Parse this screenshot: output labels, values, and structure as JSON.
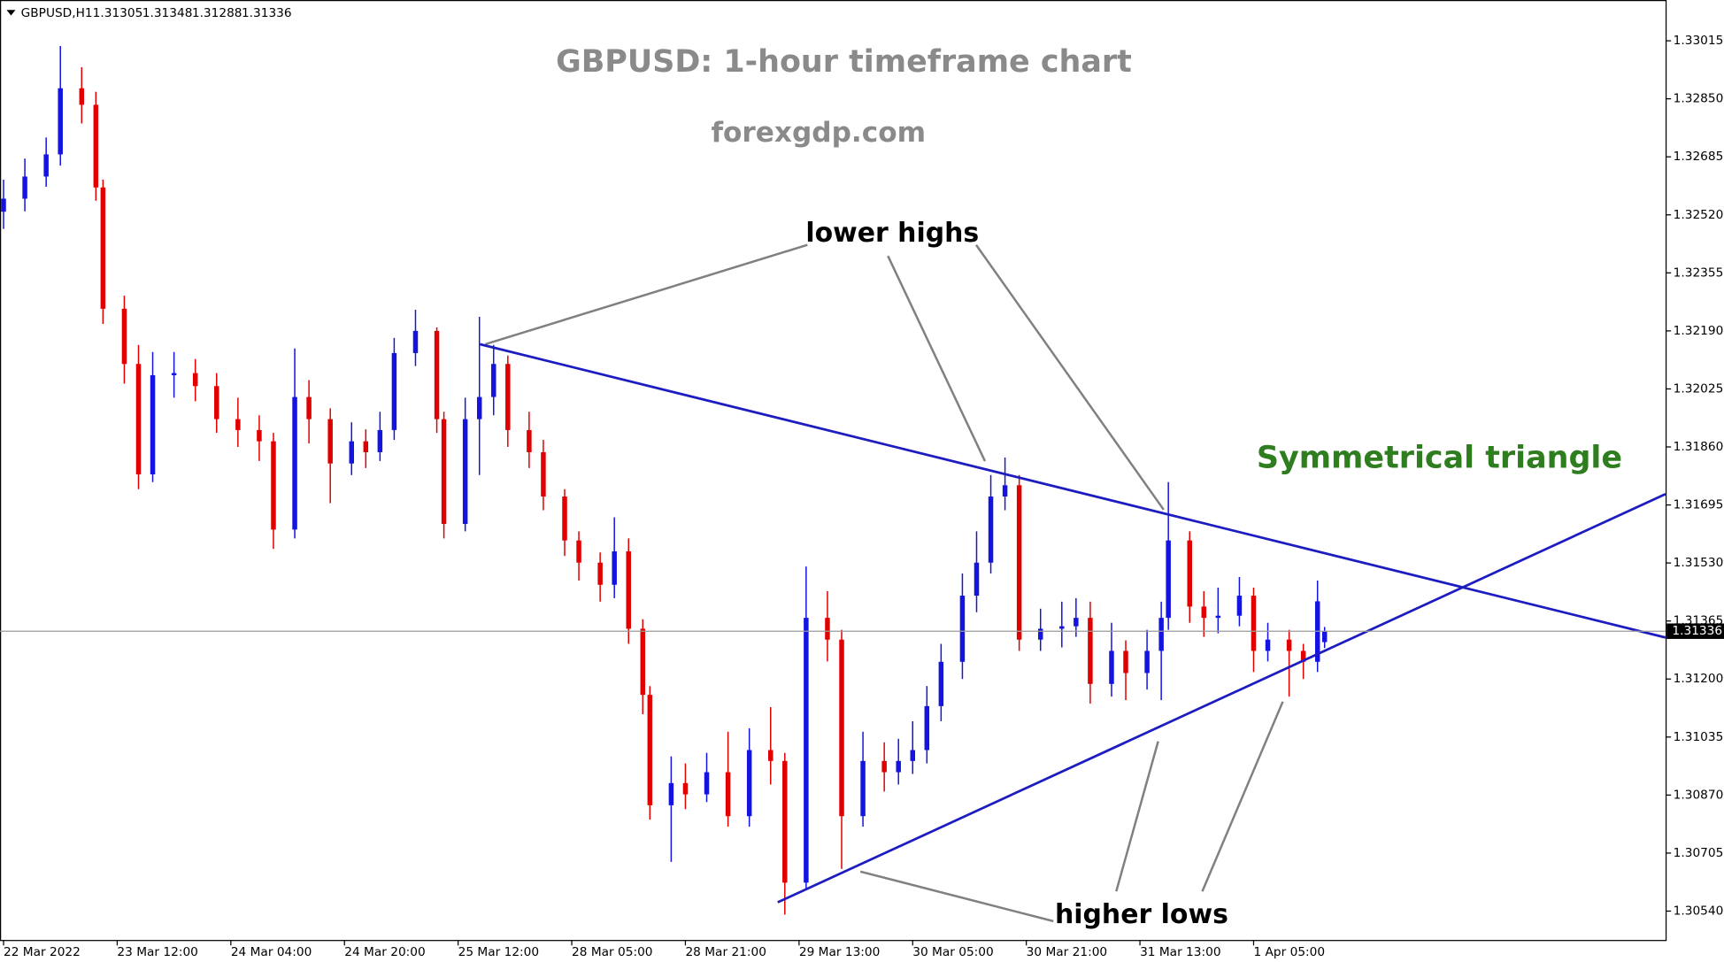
{
  "chart_data": {
    "type": "candlestick",
    "symbol": "GBPUSD,H1",
    "title": "GBPUSD: 1-hour timeframe chart",
    "subtitle": "forexgdp.com",
    "annotations": {
      "lower_highs": "lower highs",
      "higher_lows": "higher lows",
      "pattern": "Symmetrical triangle"
    },
    "x": [
      0,
      3,
      6,
      8,
      11,
      13,
      14,
      17,
      19,
      21,
      24,
      27,
      30,
      33,
      36,
      38,
      41,
      43,
      46,
      49,
      51,
      53,
      55,
      58,
      61,
      62,
      65,
      67,
      69,
      71,
      74,
      76,
      79,
      81,
      84,
      86,
      88,
      90,
      91,
      94,
      96,
      99,
      102,
      105,
      108,
      110,
      113,
      116,
      118,
      121,
      124,
      126,
      128,
      130,
      132,
      135,
      137,
      139,
      141,
      143,
      146,
      149,
      151,
      153,
      156,
      158,
      161,
      163,
      164,
      167,
      169,
      171,
      174,
      176,
      178,
      181,
      183,
      185,
      186
    ],
    "open": [
      1.32529,
      1.32566,
      1.32629,
      1.32692,
      1.3288,
      1.32833,
      1.32598,
      1.32253,
      1.32096,
      1.31782,
      1.32064,
      1.3207,
      1.32033,
      1.31939,
      1.31908,
      1.31876,
      1.31625,
      1.32002,
      1.31939,
      1.31813,
      1.31876,
      1.31845,
      1.31908,
      1.32127,
      1.3219,
      1.31939,
      1.31641,
      1.31939,
      1.32002,
      1.32096,
      1.31908,
      1.31845,
      1.31719,
      1.31594,
      1.31531,
      1.31468,
      1.31563,
      1.31343,
      1.31155,
      1.30841,
      1.30904,
      1.30872,
      1.30935,
      1.3081,
      1.30998,
      1.30967,
      1.30621,
      1.31374,
      1.31312,
      1.3081,
      1.30967,
      1.30935,
      1.30967,
      1.30998,
      1.31123,
      1.31249,
      1.31437,
      1.31531,
      1.31719,
      1.31751,
      1.31312,
      1.31343,
      1.3135,
      1.31374,
      1.31186,
      1.3128,
      1.31217,
      1.3128,
      1.31374,
      1.31594,
      1.31406,
      1.31374,
      1.3138,
      1.31437,
      1.3128,
      1.31312,
      1.3128,
      1.31249,
      1.31305
    ],
    "high": [
      1.3262,
      1.3268,
      1.3274,
      1.33,
      1.3294,
      1.3287,
      1.3262,
      1.3229,
      1.3215,
      1.3213,
      1.3213,
      1.3211,
      1.3207,
      1.32,
      1.3195,
      1.319,
      1.3214,
      1.3205,
      1.3197,
      1.3193,
      1.3191,
      1.3196,
      1.3217,
      1.3225,
      1.322,
      1.3196,
      1.32,
      1.3223,
      1.3215,
      1.3212,
      1.3196,
      1.3188,
      1.3174,
      1.3162,
      1.3156,
      1.3166,
      1.316,
      1.3137,
      1.3118,
      1.3098,
      1.3096,
      1.3099,
      1.3105,
      1.3106,
      1.3112,
      1.3099,
      1.3152,
      1.3145,
      1.3134,
      1.3105,
      1.3102,
      1.3103,
      1.3108,
      1.3118,
      1.313,
      1.315,
      1.3162,
      1.3178,
      1.3183,
      1.3178,
      1.314,
      1.3142,
      1.3143,
      1.3142,
      1.3136,
      1.3131,
      1.3134,
      1.3142,
      1.3176,
      1.3162,
      1.3145,
      1.3146,
      1.3149,
      1.3146,
      1.3136,
      1.3134,
      1.313,
      1.3148,
      1.31348
    ],
    "low": [
      1.3248,
      1.3253,
      1.326,
      1.3266,
      1.3278,
      1.3256,
      1.3221,
      1.3204,
      1.3174,
      1.3176,
      1.32,
      1.3199,
      1.319,
      1.3186,
      1.3182,
      1.3157,
      1.316,
      1.3187,
      1.317,
      1.3178,
      1.318,
      1.3182,
      1.3188,
      1.3209,
      1.319,
      1.316,
      1.3162,
      1.3178,
      1.3195,
      1.3186,
      1.318,
      1.3168,
      1.3155,
      1.3148,
      1.3142,
      1.3143,
      1.313,
      1.311,
      1.308,
      1.3068,
      1.3083,
      1.3085,
      1.3078,
      1.3078,
      1.309,
      1.3053,
      1.306,
      1.3125,
      1.3066,
      1.3078,
      1.3088,
      1.309,
      1.3093,
      1.3096,
      1.3108,
      1.312,
      1.3139,
      1.315,
      1.3168,
      1.3128,
      1.3128,
      1.3129,
      1.3132,
      1.3113,
      1.3115,
      1.3114,
      1.3117,
      1.3114,
      1.3134,
      1.3136,
      1.3132,
      1.3133,
      1.3135,
      1.3122,
      1.3125,
      1.3115,
      1.312,
      1.3122,
      1.31288
    ],
    "close": [
      1.32566,
      1.32629,
      1.32692,
      1.3288,
      1.32833,
      1.32598,
      1.32253,
      1.32096,
      1.31782,
      1.32064,
      1.3207,
      1.32033,
      1.31939,
      1.31908,
      1.31876,
      1.31625,
      1.32002,
      1.31939,
      1.31813,
      1.31876,
      1.31845,
      1.31908,
      1.32127,
      1.3219,
      1.31939,
      1.31641,
      1.31939,
      1.32002,
      1.32096,
      1.31908,
      1.31845,
      1.31719,
      1.31594,
      1.31531,
      1.31468,
      1.31563,
      1.31343,
      1.31155,
      1.30841,
      1.30904,
      1.30872,
      1.30935,
      1.3081,
      1.30998,
      1.30967,
      1.30621,
      1.31374,
      1.31312,
      1.3081,
      1.30967,
      1.30935,
      1.30967,
      1.30998,
      1.31123,
      1.31249,
      1.31437,
      1.31531,
      1.31719,
      1.31751,
      1.31312,
      1.31343,
      1.3135,
      1.31374,
      1.31186,
      1.3128,
      1.31217,
      1.3128,
      1.31374,
      1.31594,
      1.31406,
      1.31374,
      1.3138,
      1.31437,
      1.3128,
      1.31312,
      1.3128,
      1.31249,
      1.31421,
      1.31336
    ],
    "up_color": "#1414e0",
    "down_color": "#e00000",
    "trendlines": [
      {
        "x": [
          67.1,
          234
        ],
        "y": [
          1.32152,
          1.31318
        ],
        "color": "#1c1cc0"
      },
      {
        "x": [
          109.0,
          234
        ],
        "y": [
          1.30565,
          1.31726
        ],
        "color": "#1c1cc0"
      }
    ],
    "xlim": [
      -0.5,
      234
    ],
    "ylim": [
      1.30458,
      1.33131
    ],
    "xticks": [
      {
        "value": 0,
        "label": "22 Mar 2022"
      },
      {
        "value": 16,
        "label": "23 Mar 12:00"
      },
      {
        "value": 32,
        "label": "24 Mar 04:00"
      },
      {
        "value": 48,
        "label": "24 Mar 20:00"
      },
      {
        "value": 64,
        "label": "25 Mar 12:00"
      },
      {
        "value": 80,
        "label": "28 Mar 05:00"
      },
      {
        "value": 96,
        "label": "28 Mar 21:00"
      },
      {
        "value": 112,
        "label": "29 Mar 13:00"
      },
      {
        "value": 128,
        "label": "30 Mar 05:00"
      },
      {
        "value": 144,
        "label": "30 Mar 21:00"
      },
      {
        "value": 160,
        "label": "31 Mar 13:00"
      },
      {
        "value": 176,
        "label": "1 Apr 05:00"
      }
    ],
    "yticks": [
      {
        "value": 1.33015,
        "label": "1.33015"
      },
      {
        "value": 1.3285,
        "label": "1.32850"
      },
      {
        "value": 1.32685,
        "label": "1.32685"
      },
      {
        "value": 1.3252,
        "label": "1.32520"
      },
      {
        "value": 1.32355,
        "label": "1.32355"
      },
      {
        "value": 1.3219,
        "label": "1.32190"
      },
      {
        "value": 1.32025,
        "label": "1.32025"
      },
      {
        "value": 1.3186,
        "label": "1.31860"
      },
      {
        "value": 1.31695,
        "label": "1.31695"
      },
      {
        "value": 1.3153,
        "label": "1.31530"
      },
      {
        "value": 1.31365,
        "label": "1.31365"
      },
      {
        "value": 1.312,
        "label": "1.31200"
      },
      {
        "value": 1.31035,
        "label": "1.31035"
      },
      {
        "value": 1.3087,
        "label": "1.30870"
      },
      {
        "value": 1.30705,
        "label": "1.30705"
      },
      {
        "value": 1.3054,
        "label": "1.30540"
      }
    ],
    "grid": false
  }
}
